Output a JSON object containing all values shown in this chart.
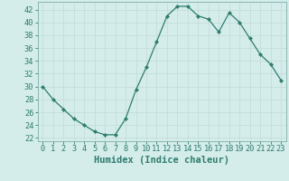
{
  "x": [
    0,
    1,
    2,
    3,
    4,
    5,
    6,
    7,
    8,
    9,
    10,
    11,
    12,
    13,
    14,
    15,
    16,
    17,
    18,
    19,
    20,
    21,
    22,
    23
  ],
  "y": [
    30,
    28,
    26.5,
    25,
    24,
    23,
    22.5,
    22.5,
    25,
    29.5,
    33,
    37,
    41,
    42.5,
    42.5,
    41,
    40.5,
    38.5,
    41.5,
    40,
    37.5,
    35,
    33.5,
    31
  ],
  "line_color": "#2e7d6e",
  "marker": "D",
  "marker_size": 2.2,
  "bg_color": "#d4ecea",
  "grid_color_major": "#c0dbd8",
  "grid_color_minor": "#c8e3e0",
  "xlabel": "Humidex (Indice chaleur)",
  "xlim": [
    -0.5,
    23.5
  ],
  "ylim": [
    21.5,
    43.2
  ],
  "yticks": [
    22,
    24,
    26,
    28,
    30,
    32,
    34,
    36,
    38,
    40,
    42
  ],
  "xticks": [
    0,
    1,
    2,
    3,
    4,
    5,
    6,
    7,
    8,
    9,
    10,
    11,
    12,
    13,
    14,
    15,
    16,
    17,
    18,
    19,
    20,
    21,
    22,
    23
  ],
  "tick_label_fontsize": 6.2,
  "xlabel_fontsize": 7.5,
  "tick_color": "#2e7d6e",
  "axis_color": "#2e7d6e",
  "spine_color": "#8ab8b4"
}
